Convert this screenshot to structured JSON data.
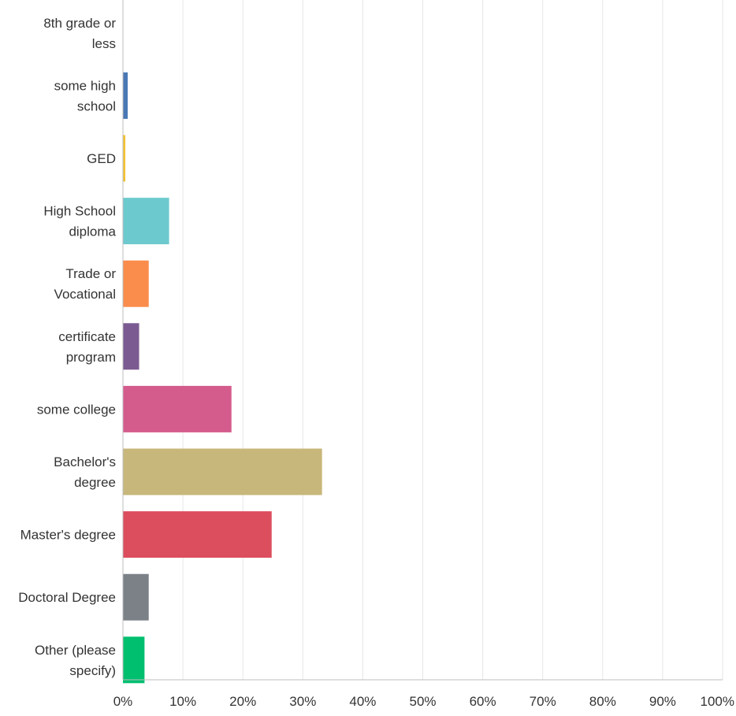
{
  "chart_data": {
    "type": "bar",
    "orientation": "horizontal",
    "categories": [
      [
        "8th grade or",
        "less"
      ],
      [
        "some high",
        "school"
      ],
      [
        "GED"
      ],
      [
        "High School",
        "diploma"
      ],
      [
        "Trade or",
        "Vocational"
      ],
      [
        "certificate",
        "program"
      ],
      [
        "some college"
      ],
      [
        "Bachelor's",
        "degree"
      ],
      [
        "Master's degree"
      ],
      [
        "Doctoral Degree"
      ],
      [
        "Other (please",
        "specify)"
      ]
    ],
    "values": [
      0,
      0.8,
      0.4,
      7.7,
      4.3,
      2.7,
      18.1,
      33.2,
      24.8,
      4.3,
      3.6
    ],
    "colors": [
      "#4f81bd",
      "#4a78b5",
      "#f2c230",
      "#6ccacf",
      "#fa8c4c",
      "#7b5a91",
      "#d45c8c",
      "#c8b77a",
      "#dc4d5d",
      "#7b8187",
      "#00bf6f"
    ],
    "xlim": [
      0,
      100
    ],
    "ticks": [
      "0%",
      "10%",
      "20%",
      "30%",
      "40%",
      "50%",
      "60%",
      "70%",
      "80%",
      "90%",
      "100%"
    ],
    "tick_values": [
      0,
      10,
      20,
      30,
      40,
      50,
      60,
      70,
      80,
      90,
      100
    ],
    "grid": true,
    "legend": "none",
    "title": "",
    "xlabel": "",
    "ylabel": ""
  }
}
